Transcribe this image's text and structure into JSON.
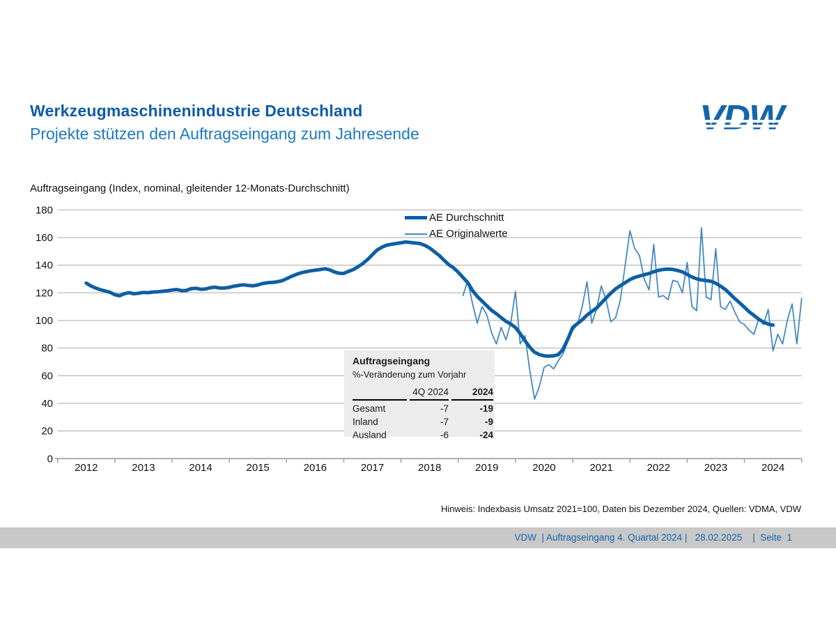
{
  "header": {
    "title": "Werkzeugmaschinenindustrie Deutschland",
    "subtitle": "Projekte stützen den Auftragseingang zum Jahresende",
    "logo_text": "VDW",
    "title_color": "#0d5ca8",
    "subtitle_color": "#1e79c0",
    "logo_color": "#1565ab"
  },
  "chart_data": {
    "type": "line",
    "title": "Auftragseingang (Index, nominal, gleitender 12-Monats-Durchschnitt)",
    "grid": true,
    "legend_position": "top-center",
    "x_axis": {
      "start_year": 2012,
      "end_year": 2025,
      "tick_labels": [
        "2012",
        "2013",
        "2014",
        "2015",
        "2016",
        "2017",
        "2018",
        "2019",
        "2020",
        "2021",
        "2022",
        "2023",
        "2024"
      ]
    },
    "y_axis": {
      "min": 0,
      "max": 180,
      "step": 20,
      "tick_labels": [
        "0",
        "20",
        "40",
        "60",
        "80",
        "100",
        "120",
        "140",
        "160",
        "180"
      ]
    },
    "series": [
      {
        "name": "AE Durchschnitt",
        "style": "thick",
        "color": "#0e5fa4",
        "points": [
          [
            2012.5,
            127.0
          ],
          [
            2012.58,
            125.0
          ],
          [
            2012.67,
            123.4
          ],
          [
            2012.75,
            122.2
          ],
          [
            2012.83,
            121.3
          ],
          [
            2012.92,
            120.3
          ],
          [
            2013.0,
            118.6
          ],
          [
            2013.08,
            117.9
          ],
          [
            2013.17,
            119.4
          ],
          [
            2013.25,
            120.1
          ],
          [
            2013.33,
            119.3
          ],
          [
            2013.42,
            119.7
          ],
          [
            2013.5,
            120.3
          ],
          [
            2013.58,
            120.1
          ],
          [
            2013.67,
            120.6
          ],
          [
            2013.75,
            120.7
          ],
          [
            2013.83,
            121.1
          ],
          [
            2013.92,
            121.5
          ],
          [
            2014.0,
            122.0
          ],
          [
            2014.08,
            122.4
          ],
          [
            2014.17,
            121.5
          ],
          [
            2014.25,
            121.7
          ],
          [
            2014.33,
            123.0
          ],
          [
            2014.42,
            123.3
          ],
          [
            2014.5,
            122.5
          ],
          [
            2014.58,
            122.7
          ],
          [
            2014.67,
            123.7
          ],
          [
            2014.75,
            124.1
          ],
          [
            2014.83,
            123.4
          ],
          [
            2014.92,
            123.5
          ],
          [
            2015.0,
            124.0
          ],
          [
            2015.08,
            124.8
          ],
          [
            2015.17,
            125.4
          ],
          [
            2015.25,
            125.8
          ],
          [
            2015.33,
            125.3
          ],
          [
            2015.42,
            125.1
          ],
          [
            2015.5,
            125.7
          ],
          [
            2015.58,
            126.7
          ],
          [
            2015.67,
            127.3
          ],
          [
            2015.75,
            127.5
          ],
          [
            2015.83,
            127.9
          ],
          [
            2015.92,
            128.7
          ],
          [
            2016.0,
            130.2
          ],
          [
            2016.08,
            131.8
          ],
          [
            2016.17,
            133.3
          ],
          [
            2016.25,
            134.4
          ],
          [
            2016.33,
            135.2
          ],
          [
            2016.42,
            135.9
          ],
          [
            2016.5,
            136.4
          ],
          [
            2016.58,
            136.8
          ],
          [
            2016.67,
            137.4
          ],
          [
            2016.75,
            136.7
          ],
          [
            2016.83,
            135.2
          ],
          [
            2016.92,
            134.1
          ],
          [
            2017.0,
            134.0
          ],
          [
            2017.08,
            135.5
          ],
          [
            2017.17,
            136.9
          ],
          [
            2017.25,
            138.9
          ],
          [
            2017.33,
            141.1
          ],
          [
            2017.42,
            144.3
          ],
          [
            2017.5,
            147.6
          ],
          [
            2017.58,
            150.9
          ],
          [
            2017.67,
            153.1
          ],
          [
            2017.75,
            154.5
          ],
          [
            2017.83,
            155.1
          ],
          [
            2017.92,
            155.7
          ],
          [
            2018.0,
            156.2
          ],
          [
            2018.08,
            156.8
          ],
          [
            2018.17,
            156.4
          ],
          [
            2018.25,
            156.0
          ],
          [
            2018.33,
            155.7
          ],
          [
            2018.42,
            154.3
          ],
          [
            2018.5,
            152.4
          ],
          [
            2018.58,
            149.9
          ],
          [
            2018.67,
            147.0
          ],
          [
            2018.75,
            143.7
          ],
          [
            2018.83,
            140.5
          ],
          [
            2018.92,
            138.0
          ],
          [
            2019.0,
            134.9
          ],
          [
            2019.08,
            131.3
          ],
          [
            2019.17,
            127.1
          ],
          [
            2019.25,
            121.6
          ],
          [
            2019.33,
            117.5
          ],
          [
            2019.42,
            113.8
          ],
          [
            2019.5,
            110.6
          ],
          [
            2019.58,
            107.4
          ],
          [
            2019.67,
            104.7
          ],
          [
            2019.75,
            102.0
          ],
          [
            2019.83,
            99.5
          ],
          [
            2019.92,
            97.3
          ],
          [
            2020.0,
            94.9
          ],
          [
            2020.08,
            90.6
          ],
          [
            2020.17,
            85.1
          ],
          [
            2020.25,
            80.6
          ],
          [
            2020.33,
            77.1
          ],
          [
            2020.42,
            75.3
          ],
          [
            2020.5,
            74.4
          ],
          [
            2020.58,
            74.1
          ],
          [
            2020.67,
            74.4
          ],
          [
            2020.75,
            75.3
          ],
          [
            2020.83,
            79.0
          ],
          [
            2020.92,
            87.0
          ],
          [
            2021.0,
            95.0
          ],
          [
            2021.08,
            97.6
          ],
          [
            2021.17,
            100.6
          ],
          [
            2021.25,
            103.9
          ],
          [
            2021.33,
            106.4
          ],
          [
            2021.42,
            109.1
          ],
          [
            2021.5,
            112.6
          ],
          [
            2021.58,
            116.1
          ],
          [
            2021.67,
            119.9
          ],
          [
            2021.75,
            122.9
          ],
          [
            2021.83,
            125.1
          ],
          [
            2021.92,
            127.4
          ],
          [
            2022.0,
            129.6
          ],
          [
            2022.08,
            131.1
          ],
          [
            2022.17,
            132.2
          ],
          [
            2022.25,
            133.1
          ],
          [
            2022.33,
            133.9
          ],
          [
            2022.42,
            135.3
          ],
          [
            2022.5,
            136.3
          ],
          [
            2022.58,
            136.9
          ],
          [
            2022.67,
            137.2
          ],
          [
            2022.75,
            136.9
          ],
          [
            2022.83,
            136.2
          ],
          [
            2022.92,
            135.1
          ],
          [
            2023.0,
            133.3
          ],
          [
            2023.08,
            131.5
          ],
          [
            2023.17,
            130.1
          ],
          [
            2023.25,
            129.3
          ],
          [
            2023.33,
            128.9
          ],
          [
            2023.42,
            128.3
          ],
          [
            2023.5,
            126.9
          ],
          [
            2023.58,
            124.9
          ],
          [
            2023.67,
            122.3
          ],
          [
            2023.75,
            119.1
          ],
          [
            2023.83,
            115.9
          ],
          [
            2023.92,
            112.7
          ],
          [
            2024.0,
            109.6
          ],
          [
            2024.08,
            106.4
          ],
          [
            2024.17,
            103.5
          ],
          [
            2024.25,
            101.0
          ],
          [
            2024.33,
            98.9
          ],
          [
            2024.42,
            97.3
          ],
          [
            2024.5,
            96.6
          ]
        ]
      },
      {
        "name": "AE Originalwerte",
        "style": "thin",
        "color": "#4288c4",
        "monthly_start_year": 2019,
        "values": [
          118,
          129,
          112,
          98,
          110,
          104,
          91,
          83,
          95,
          86,
          98,
          121,
          83,
          89,
          64,
          43,
          52,
          66,
          68,
          65,
          71,
          76,
          85,
          93,
          97,
          110,
          128,
          98,
          108,
          125,
          115,
          99,
          102,
          115,
          140,
          165,
          152,
          147,
          130,
          122,
          155,
          117,
          118,
          115,
          129,
          128,
          120,
          142,
          110,
          107,
          167,
          117,
          115,
          152,
          110,
          108,
          114,
          106,
          99,
          97,
          93,
          90,
          101,
          97,
          108,
          78,
          90,
          83,
          100,
          112,
          83,
          116
        ]
      }
    ],
    "inset_table": {
      "title": "Auftragseingang",
      "subtitle": "%-Veränderung zum Vorjahr",
      "col1_header": "4Q 2024",
      "col2_header": "2024",
      "rows": [
        {
          "label": "Gesamt",
          "q4": "-7",
          "year": "-19"
        },
        {
          "label": "Inland",
          "q4": "-7",
          "year": "-9"
        },
        {
          "label": "Ausland",
          "q4": "-6",
          "year": "-24"
        }
      ]
    }
  },
  "footnote": "Hinweis: Indexbasis Umsatz 2021=100, Daten bis Dezember 2024, Quellen: VDMA, VDW",
  "footer": {
    "text": "VDW  | Auftragseingang 4. Quartal 2024 |   28.02.2025    |  Seite  1",
    "bar_color": "#c8c8c8",
    "text_color": "#1565ab"
  }
}
